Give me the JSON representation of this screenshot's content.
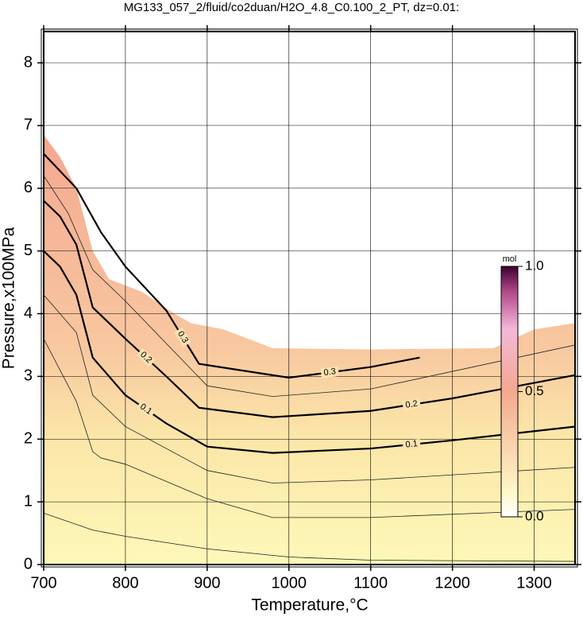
{
  "chart_data": {
    "type": "contour",
    "title": "MG133_057_2/fluid/co2duan/H2O_4.8_C0.100_2_PT, dz=0.01:",
    "x_label": "Temperature,°C",
    "y_label": "Pressure,x100MPa",
    "xlim": [
      700,
      1350
    ],
    "xticks": [
      700,
      800,
      900,
      1000,
      1100,
      1200,
      1300
    ],
    "ylim": [
      0,
      8.5
    ],
    "yticks": [
      0,
      1,
      2,
      3,
      4,
      5,
      6,
      7,
      8
    ],
    "grid": true,
    "field_boundary": {
      "x": [
        700,
        720,
        740,
        760,
        780,
        820,
        860,
        880,
        920,
        980,
        1100,
        1250,
        1300,
        1350
      ],
      "y": [
        6.85,
        6.5,
        6.0,
        5.0,
        4.55,
        4.35,
        4.0,
        3.85,
        3.75,
        3.45,
        3.43,
        3.45,
        3.75,
        3.85
      ]
    },
    "contours": [
      {
        "level": 0.1,
        "x": [
          700,
          720,
          740,
          760,
          800,
          850,
          900,
          980,
          1100,
          1200,
          1350
        ],
        "y": [
          5.0,
          4.75,
          4.3,
          3.3,
          2.7,
          2.25,
          1.88,
          1.78,
          1.85,
          1.98,
          2.2
        ]
      },
      {
        "level": 0.2,
        "x": [
          700,
          720,
          740,
          760,
          800,
          850,
          890,
          980,
          1100,
          1200,
          1350
        ],
        "y": [
          5.8,
          5.55,
          5.1,
          4.1,
          3.6,
          3.0,
          2.5,
          2.35,
          2.45,
          2.65,
          3.02
        ]
      },
      {
        "level": 0.3,
        "x": [
          700,
          740,
          770,
          800,
          850,
          890,
          1000,
          1100,
          1160
        ],
        "y": [
          6.55,
          6.0,
          5.3,
          4.75,
          4.05,
          3.2,
          2.98,
          3.15,
          3.3
        ]
      }
    ],
    "thin_contours": [
      {
        "x": [
          700,
          760,
          800,
          900,
          1000,
          1100,
          1350
        ],
        "y": [
          0.82,
          0.55,
          0.45,
          0.25,
          0.12,
          0.07,
          0.05
        ]
      },
      {
        "x": [
          700,
          740,
          760,
          770,
          800,
          900,
          980,
          1100,
          1350
        ],
        "y": [
          3.6,
          2.6,
          1.8,
          1.7,
          1.6,
          1.05,
          0.75,
          0.75,
          0.88
        ]
      },
      {
        "x": [
          700,
          740,
          760,
          800,
          900,
          980,
          1100,
          1350
        ],
        "y": [
          4.3,
          3.7,
          2.7,
          2.2,
          1.5,
          1.3,
          1.35,
          1.55
        ]
      },
      {
        "x": [
          700,
          730,
          760,
          800,
          900,
          980,
          1100,
          1350
        ],
        "y": [
          6.2,
          5.6,
          4.7,
          4.2,
          2.85,
          2.68,
          2.8,
          3.5
        ]
      }
    ],
    "colorbar": {
      "label": "mol",
      "lim": [
        0,
        1
      ],
      "ticks": [
        {
          "value": 0,
          "label": "0.0"
        },
        {
          "value": 0.5,
          "label": "0.5"
        },
        {
          "value": 1,
          "label": "1.0"
        }
      ]
    }
  }
}
